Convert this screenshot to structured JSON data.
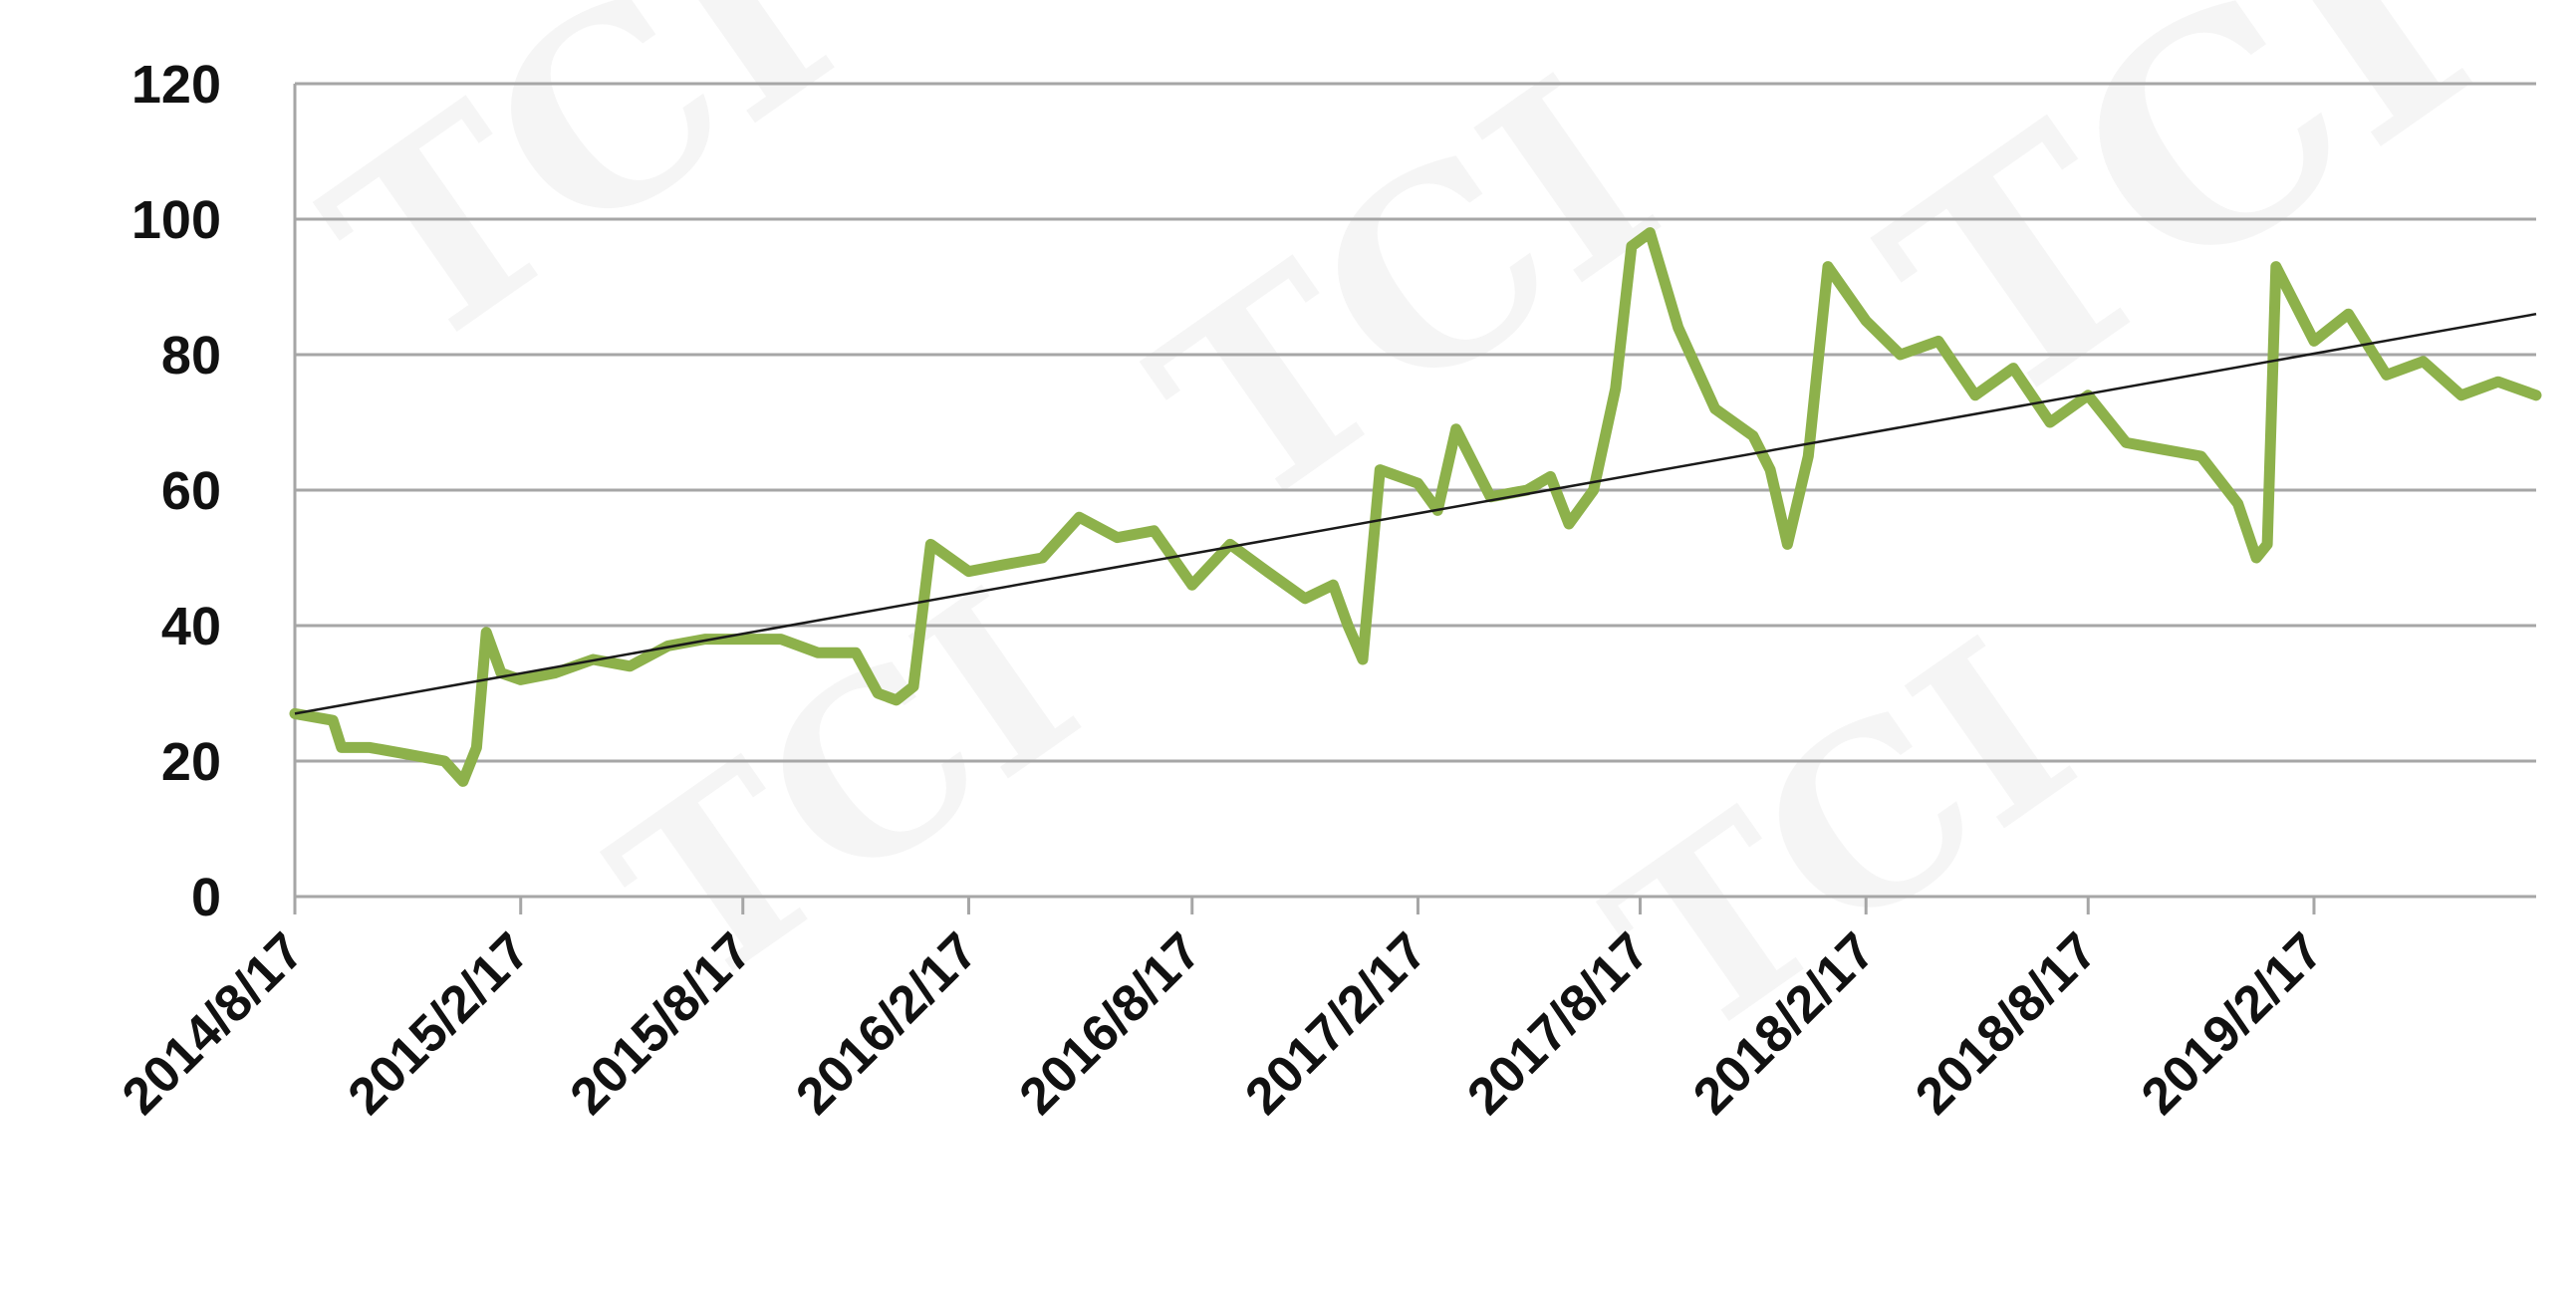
{
  "chart_data": {
    "type": "line",
    "title": "",
    "xlabel": "",
    "ylabel": "",
    "ylim": [
      0,
      120
    ],
    "yticks": [
      "0",
      "20",
      "40",
      "60",
      "80",
      "100",
      "120"
    ],
    "xlim": [
      "2014/8/17",
      "2019/8/17"
    ],
    "xticks": [
      "2014/8/17",
      "2015/2/17",
      "2015/8/17",
      "2016/2/17",
      "2016/8/17",
      "2017/2/17",
      "2017/8/17",
      "2018/2/17",
      "2018/8/17",
      "2019/2/17"
    ],
    "grid": true,
    "legend": "none",
    "series": [
      {
        "color": "#8db14b",
        "x": [
          "2014/8/17",
          "2014/9/17",
          "2014/9/24",
          "2014/10/17",
          "2014/11/17",
          "2014/12/17",
          "2015/1/1",
          "2015/1/12",
          "2015/1/20",
          "2015/2/1",
          "2015/2/17",
          "2015/3/17",
          "2015/4/17",
          "2015/5/17",
          "2015/6/17",
          "2015/7/17",
          "2015/8/17",
          "2015/9/17",
          "2015/10/17",
          "2015/11/17",
          "2015/12/5",
          "2015/12/20",
          "2016/1/3",
          "2016/1/17",
          "2016/2/17",
          "2016/3/17",
          "2016/4/17",
          "2016/5/17",
          "2016/6/17",
          "2016/7/17",
          "2016/8/17",
          "2016/9/17",
          "2016/10/17",
          "2016/11/17",
          "2016/12/10",
          "2016/12/22",
          "2017/1/3",
          "2017/1/17",
          "2017/2/17",
          "2017/3/5",
          "2017/3/20",
          "2017/4/17",
          "2017/5/17",
          "2017/6/5",
          "2017/6/20",
          "2017/7/10",
          "2017/7/28",
          "2017/8/10",
          "2017/8/25",
          "2017/9/17",
          "2017/10/17",
          "2017/11/17",
          "2017/12/1",
          "2017/12/15",
          "2018/1/1",
          "2018/1/17",
          "2018/2/17",
          "2018/3/17",
          "2018/4/17",
          "2018/5/17",
          "2018/6/17",
          "2018/7/17",
          "2018/8/17",
          "2018/9/17",
          "2018/10/17",
          "2018/11/17",
          "2018/12/17",
          "2019/1/1",
          "2019/1/10",
          "2019/1/17",
          "2019/2/17",
          "2019/3/17",
          "2019/4/17",
          "2019/5/17",
          "2019/6/17",
          "2019/7/17",
          "2019/8/17"
        ],
        "values": [
          27,
          26,
          22,
          22,
          21,
          20,
          17,
          22,
          39,
          33,
          32,
          33,
          35,
          34,
          37,
          38,
          38,
          38,
          36,
          36,
          30,
          29,
          31,
          52,
          48,
          49,
          50,
          56,
          53,
          54,
          46,
          52,
          48,
          44,
          46,
          40,
          35,
          63,
          61,
          57,
          69,
          59,
          60,
          62,
          55,
          60,
          75,
          96,
          98,
          84,
          72,
          68,
          63,
          52,
          65,
          93,
          85,
          80,
          82,
          74,
          78,
          70,
          74,
          67,
          66,
          65,
          58,
          50,
          52,
          93,
          82,
          86,
          77,
          79,
          74,
          76,
          74
        ]
      },
      {
        "color": "#1a1a1a",
        "x": [
          "2014/8/17",
          "2019/8/17"
        ],
        "values": [
          27,
          86
        ]
      }
    ]
  }
}
